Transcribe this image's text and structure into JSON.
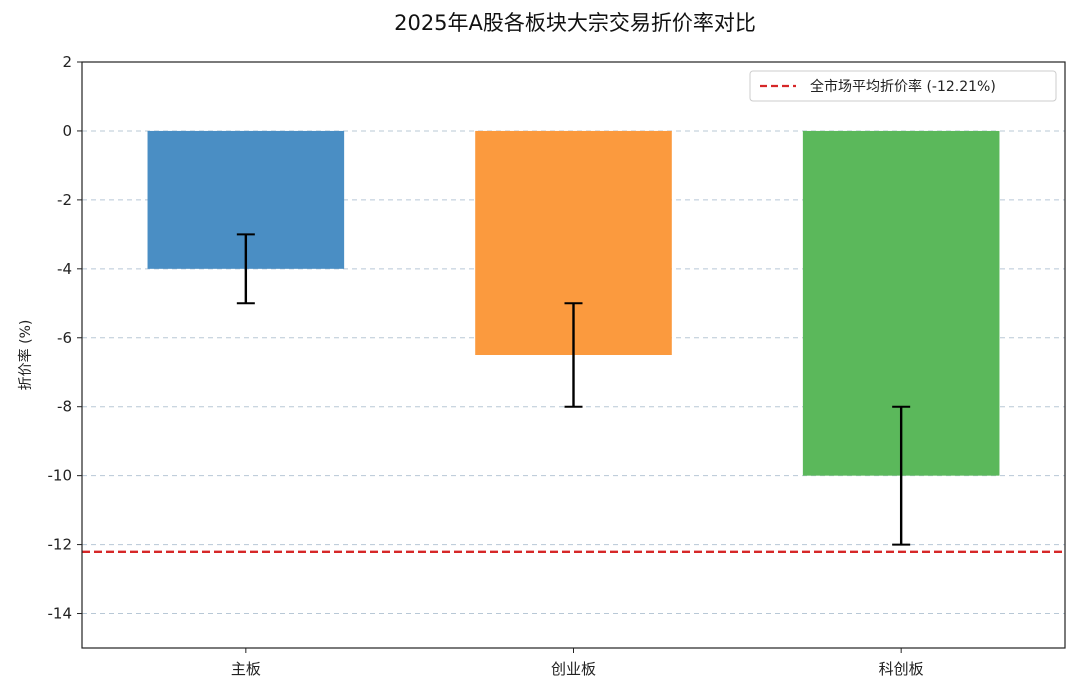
{
  "chart_data": {
    "type": "bar",
    "title": "2025年A股各板块大宗交易折价率对比",
    "xlabel": "",
    "ylabel": "折价率 (%)",
    "categories": [
      "主板",
      "创业板",
      "科创板"
    ],
    "values": [
      -4.0,
      -6.5,
      -10.0
    ],
    "error_bars": [
      {
        "low": -5.0,
        "high": -3.0
      },
      {
        "low": -8.0,
        "high": -5.0
      },
      {
        "low": -12.0,
        "high": -8.0
      }
    ],
    "bar_colors": [
      "#4a8ec4",
      "#fb9a3e",
      "#5bb85b"
    ],
    "ylim": [
      -15,
      2
    ],
    "yticks": [
      2,
      0,
      -2,
      -4,
      -6,
      -8,
      -10,
      -12,
      -14
    ],
    "ytick_labels": [
      "2",
      "0",
      "-2",
      "-4",
      "-6",
      "-8",
      "-10",
      "-12",
      "-14"
    ],
    "grid": true,
    "reference_line": {
      "value": -12.21,
      "label": "全市场平均折价率 (-12.21%)",
      "color": "#d62728",
      "style": "dashed"
    },
    "legend": {
      "position": "top-right"
    }
  }
}
